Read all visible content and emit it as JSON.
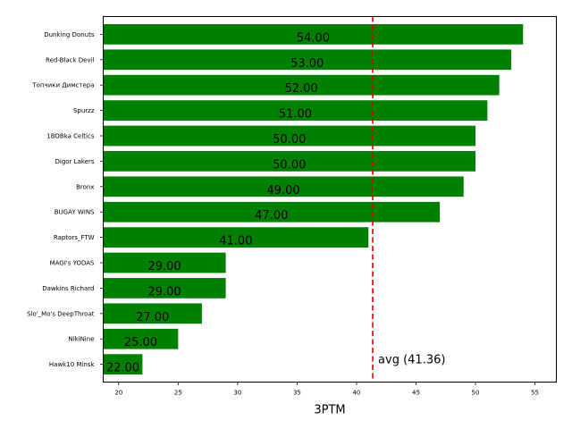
{
  "chart_data": {
    "type": "bar",
    "orientation": "horizontal",
    "categories": [
      "Dunking Donuts",
      "Red-Black Devil",
      "Топчики Димстера",
      "Spurzz",
      "1BOBka Celtics",
      "Digor Lakers",
      "Bronx",
      "BUGAY WINS",
      "Raptors_FTW",
      "MAGI's YODAS",
      "Dawkins Richard",
      "Slo'_Mo's DeepThroat",
      "NikiNine",
      "Hawk10 Minsk"
    ],
    "values": [
      54,
      53,
      52,
      51,
      50,
      50,
      49,
      47,
      41,
      29,
      29,
      27,
      25,
      22
    ],
    "value_labels": [
      "54.00",
      "53.00",
      "52.00",
      "51.00",
      "50.00",
      "50.00",
      "49.00",
      "47.00",
      "41.00",
      "29.00",
      "29.00",
      "27.00",
      "25.00",
      "22.00"
    ],
    "xlabel": "3PTM",
    "ylabel": "",
    "xlim": [
      18.7,
      56.8
    ],
    "x_ticks": [
      20,
      25,
      30,
      35,
      40,
      45,
      50,
      55
    ],
    "average": 41.36,
    "average_label": "avg (41.36)",
    "grid": false,
    "colors": {
      "bar": "#008000",
      "average_line": "#e00000",
      "text": "#000000"
    }
  }
}
